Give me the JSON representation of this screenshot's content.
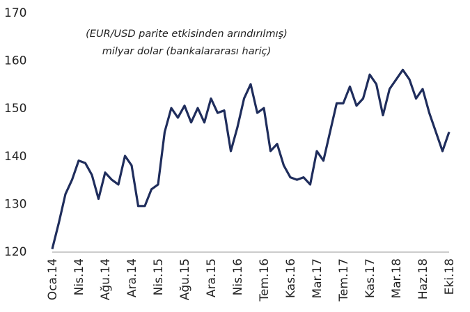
{
  "chart_data": {
    "type": "line",
    "annotation": [
      "(EUR/USD parite etkisinden arındırılmış)",
      "milyar dolar (bankalararası hariç)"
    ],
    "categories": [
      "Oca.14",
      null,
      null,
      null,
      "Nis.14",
      null,
      null,
      null,
      "Ağu.14",
      null,
      null,
      null,
      "Ara.14",
      null,
      null,
      null,
      "Nis.15",
      null,
      null,
      null,
      "Ağu.15",
      null,
      null,
      null,
      "Ara.15",
      null,
      null,
      null,
      "Nis.16",
      null,
      null,
      null,
      "Tem.16",
      null,
      null,
      null,
      "Kas.16",
      null,
      null,
      null,
      "Mar.17",
      null,
      null,
      null,
      "Tem.17",
      null,
      null,
      null,
      "Kas.17",
      null,
      null,
      null,
      "Mar.18",
      null,
      null,
      null,
      "Haz.18",
      null,
      null,
      null,
      "Eki.18"
    ],
    "series": [
      {
        "color": "#1f2d5c",
        "values": [
          120.5,
          126,
          132,
          135,
          139,
          138.5,
          136,
          131,
          136.5,
          135,
          134,
          140,
          138,
          129.5,
          129.5,
          133,
          134,
          145,
          150,
          148,
          150.5,
          147,
          150,
          147,
          152,
          149,
          149.5,
          141,
          146,
          152,
          155,
          149,
          150,
          141,
          142.5,
          138,
          135.5,
          135,
          135.5,
          134,
          141,
          139,
          145,
          151,
          151,
          154.5,
          150.5,
          152,
          157,
          155,
          148.5,
          154,
          156,
          158,
          156,
          152,
          154,
          149,
          145,
          141,
          145
        ]
      }
    ],
    "ylim": [
      120,
      170
    ],
    "yticks": [
      120,
      130,
      140,
      150,
      160,
      170
    ],
    "grid": false
  }
}
